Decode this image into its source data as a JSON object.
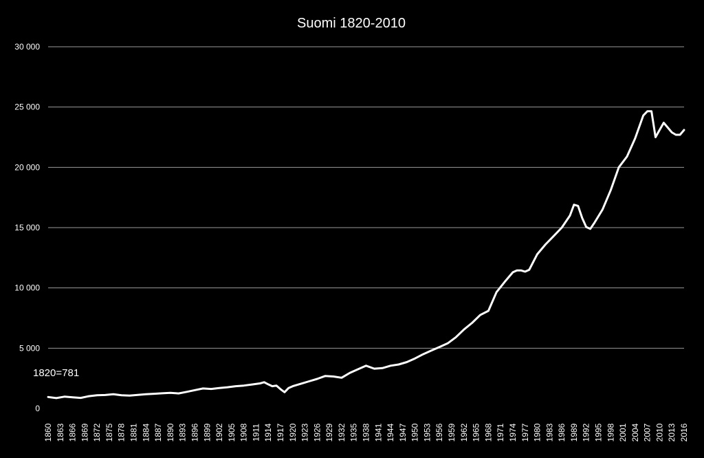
{
  "chart_data": {
    "type": "line",
    "title": "Suomi 1820-2010",
    "annotation": "1820=781",
    "xlabel": "",
    "ylabel": "",
    "ylim": [
      0,
      30000
    ],
    "yticks": [
      0,
      5000,
      10000,
      15000,
      20000,
      25000,
      30000
    ],
    "ytick_labels": [
      "0",
      "5 000",
      "10 000",
      "15 000",
      "20 000",
      "25 000",
      "30 000"
    ],
    "xlim": [
      1860,
      2016
    ],
    "xticks": [
      1860,
      1863,
      1866,
      1869,
      1872,
      1875,
      1878,
      1881,
      1884,
      1887,
      1890,
      1893,
      1896,
      1899,
      1902,
      1905,
      1908,
      1911,
      1914,
      1917,
      1920,
      1923,
      1926,
      1929,
      1932,
      1935,
      1938,
      1941,
      1944,
      1947,
      1950,
      1953,
      1956,
      1959,
      1962,
      1965,
      1968,
      1971,
      1974,
      1977,
      1980,
      1983,
      1986,
      1989,
      1992,
      1995,
      1998,
      2001,
      2004,
      2007,
      2010,
      2013,
      2016
    ],
    "grid": true,
    "legend": "none",
    "colors": {
      "background": "#000000",
      "line": "#ffffff",
      "grid": "#9a9a9a",
      "text": "#ffffff"
    },
    "x": [
      1860,
      1862,
      1864,
      1866,
      1868,
      1870,
      1872,
      1874,
      1876,
      1878,
      1880,
      1882,
      1884,
      1886,
      1888,
      1890,
      1892,
      1894,
      1896,
      1898,
      1900,
      1902,
      1904,
      1906,
      1908,
      1910,
      1912,
      1913,
      1914,
      1915,
      1916,
      1917,
      1918,
      1919,
      1920,
      1922,
      1924,
      1926,
      1928,
      1930,
      1932,
      1934,
      1936,
      1938,
      1940,
      1942,
      1944,
      1946,
      1948,
      1950,
      1952,
      1954,
      1956,
      1958,
      1960,
      1962,
      1964,
      1966,
      1968,
      1970,
      1972,
      1974,
      1975,
      1976,
      1977,
      1978,
      1980,
      1982,
      1984,
      1986,
      1988,
      1989,
      1990,
      1991,
      1992,
      1993,
      1994,
      1996,
      1998,
      2000,
      2002,
      2004,
      2006,
      2007,
      2008,
      2009,
      2010,
      2011,
      2012,
      2013,
      2014,
      2015,
      2016
    ],
    "y": [
      950,
      860,
      980,
      930,
      880,
      1020,
      1100,
      1120,
      1180,
      1100,
      1070,
      1130,
      1180,
      1220,
      1260,
      1300,
      1250,
      1380,
      1520,
      1660,
      1620,
      1700,
      1760,
      1850,
      1900,
      1990,
      2080,
      2180,
      2000,
      1850,
      1900,
      1600,
      1350,
      1700,
      1850,
      2050,
      2250,
      2450,
      2700,
      2650,
      2550,
      2950,
      3250,
      3550,
      3300,
      3350,
      3550,
      3650,
      3850,
      4150,
      4500,
      4800,
      5100,
      5400,
      5900,
      6550,
      7100,
      7750,
      8100,
      9650,
      10500,
      11300,
      11450,
      11450,
      11350,
      11500,
      12800,
      13600,
      14300,
      15000,
      16000,
      16900,
      16800,
      15800,
      15050,
      14900,
      15400,
      16500,
      18100,
      20000,
      20900,
      22400,
      24300,
      24650,
      24650,
      22500,
      23100,
      23700,
      23300,
      22900,
      22700,
      22700,
      23100
    ]
  }
}
